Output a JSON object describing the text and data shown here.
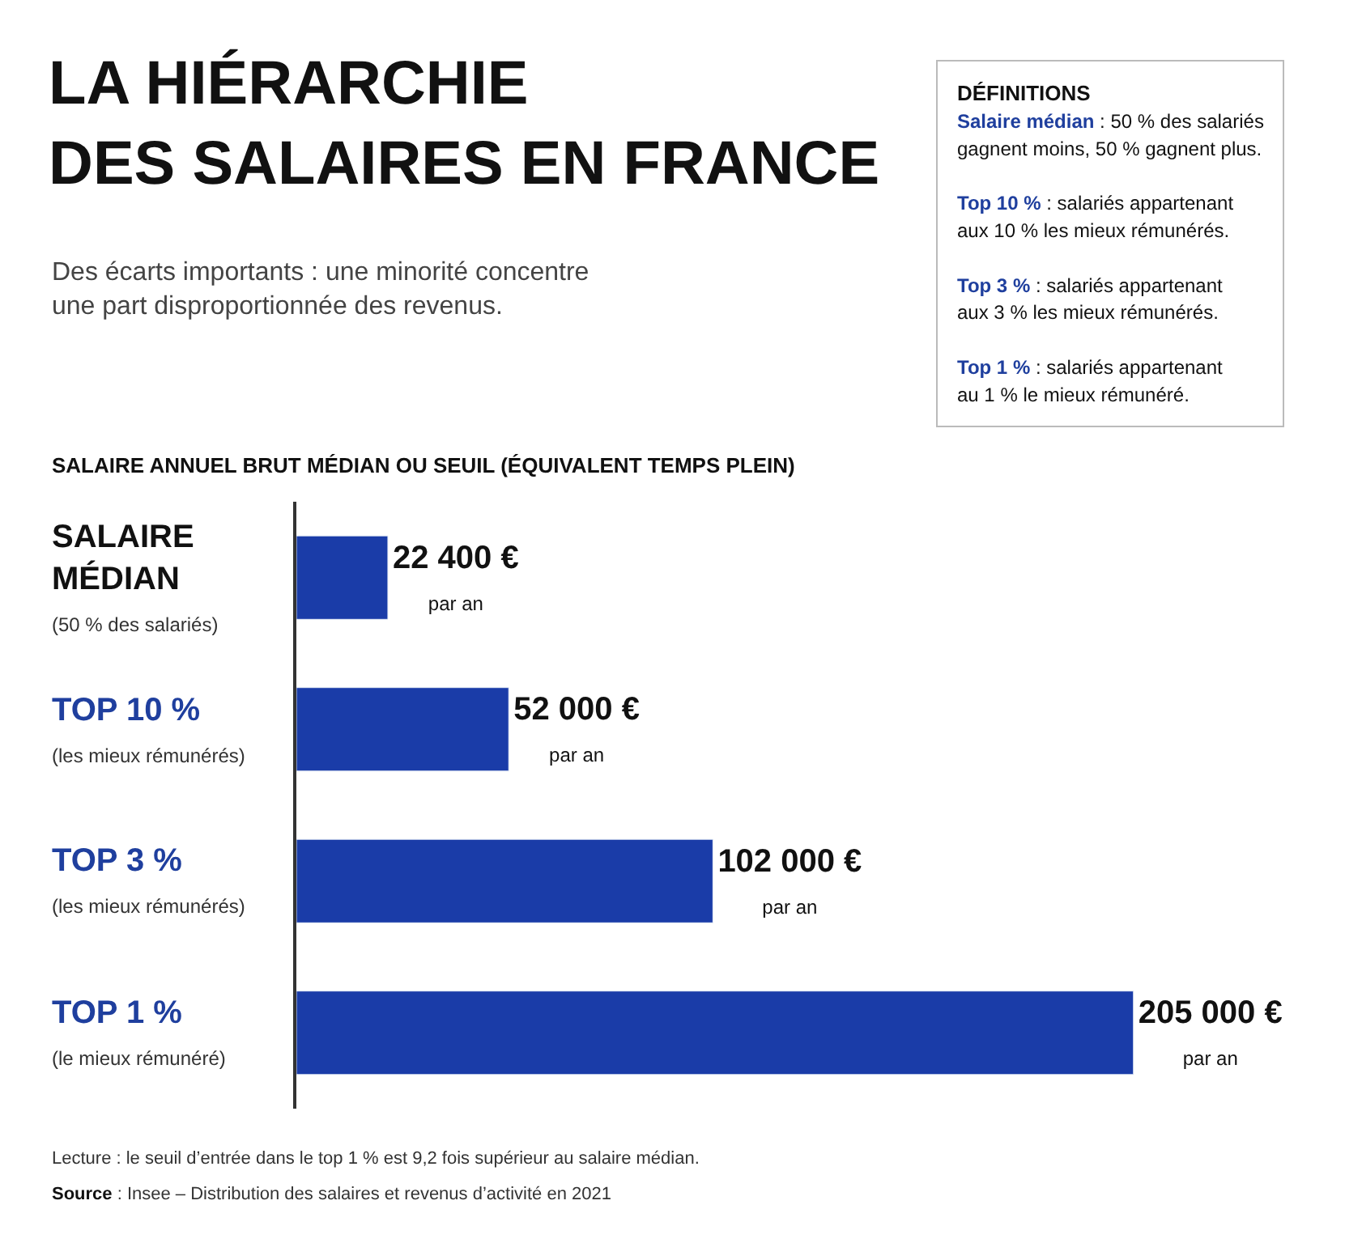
{
  "chart_data": {
    "type": "bar",
    "orientation": "horizontal",
    "title": "LA HIÉRARCHIE\nDES SALAIRES EN FRANCE",
    "subtitle": "Des écarts importants : une minorité concentre\nune part disproportionnée des revenus.",
    "categories": [
      "SALAIRE\nMÉDIAN\n(50 % des salariés)",
      "TOP 10 %\n(les mieux rémunérés)",
      "TOP 3 %\n(les mieux rémunérés)",
      "TOP 1 %\n(le mieux rémunéré)"
    ],
    "values": [
      22400,
      52000,
      102000,
      205000
    ],
    "color": "#1a3ca8",
    "value_labels": [
      "22 400 €\npar an",
      "52 000 €\npar an",
      "102 000 €\npar an",
      "205 000 €\npar an"
    ],
    "legend": false,
    "annotations": [
      "SALAIRE ANNUEL BRUT MÉDIAN OU SEUIL (ÉQUIVALENT TEMPS PLEIN)",
      "DÉFINITIONS",
      "Salaire médian : 50 % des salariés\ngagnent moins, 50 % gagnent plus.",
      "Top 10 % : salariés appartenant\naux 10 % les mieux rémunérés.",
      "Top 3 % : salariés appartenant\naux 3 % les mieux rémunérés.",
      "Top 1 % : salariés appartenant\nau 1 % le mieux rémunéré.",
      "Lecture : le seuil d’entrée dans le top 1 % est 9,2 fois supérieur au salaire médian.",
      "Source : Insee – Distribution des salaires et revenus d’activité en 2021"
    ]
  }
}
